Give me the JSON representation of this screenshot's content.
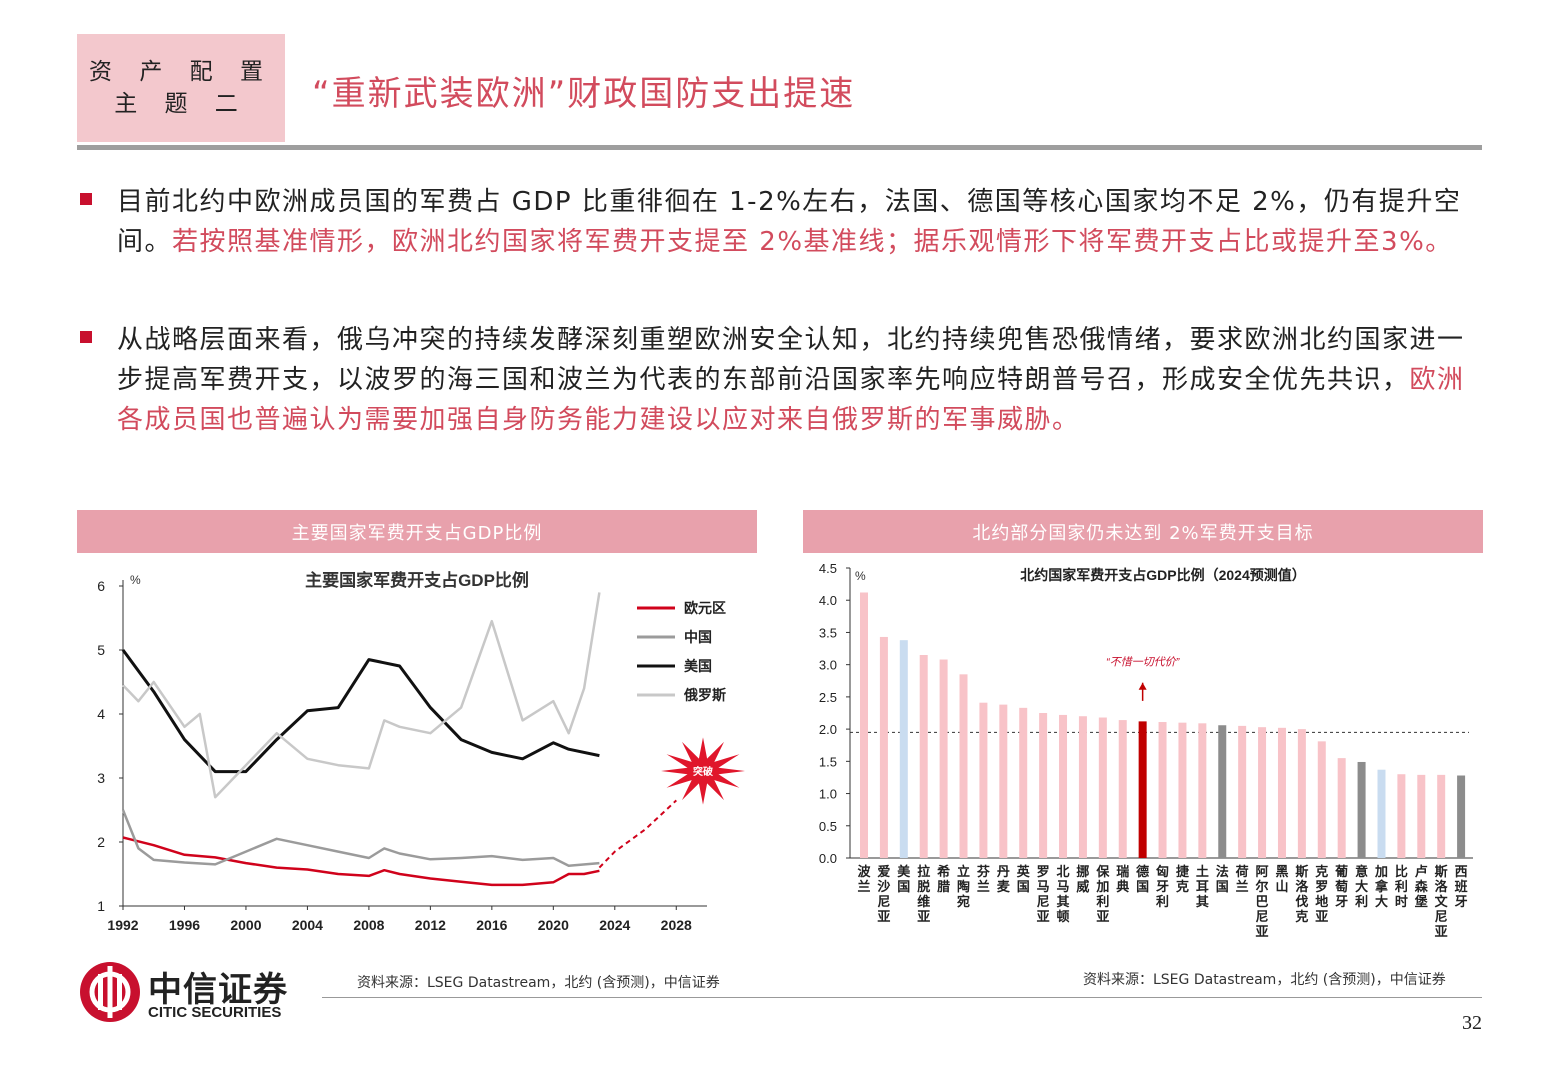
{
  "header": {
    "tag_line1": "资 产 配 置",
    "tag_line2": "主 题 二",
    "title": "“重新武装欧洲”财政国防支出提速"
  },
  "bullets": [
    {
      "black1": "目前北约中欧洲成员国的军费占 GDP 比重徘徊在 1-2%左右，法国、德国等核心国家均不足 2%，仍有提升空间。",
      "red1": "若按照基准情形，欧洲北约国家将军费开支提至 2%基准线；据乐观情形下将军费开支占比或提升至3%。"
    },
    {
      "black1": "从战略层面来看，俄乌冲突的持续发酵深刻重塑欧洲安全认知，北约持续兜售恐俄情绪，要求欧洲北约国家进一步提高军费开支，以波罗的海三国和波兰为代表的东部前沿国家率先响应特朗普号召，形成安全优先共识，",
      "red1": "欧洲各成员国也普遍认为需要加强自身防务能力建设以应对来自俄罗斯的军事威胁。"
    }
  ],
  "left_panel": {
    "header": "主要国家军费开支占GDP比例",
    "source": "资料来源：LSEG Datastream，北约 (含预测)，中信证券"
  },
  "right_panel": {
    "header": "北约部分国家仍未达到 2%军费开支目标",
    "source": "资料来源：LSEG Datastream，北约 (含预测)，中信证券"
  },
  "logo": {
    "cn": "中信证券",
    "en": "CITIC SECURITIES"
  },
  "page_number": "32",
  "colors": {
    "accent": "#d24b5d",
    "header_bg": "#f3c8cd",
    "panel_head": "#e8a1ac"
  },
  "chart_data": [
    {
      "type": "line",
      "title": "主要国家军费开支占GDP比例",
      "ylabel": "%",
      "ylim": [
        1,
        6
      ],
      "xlim": [
        1992,
        2030
      ],
      "xticks": [
        "1992",
        "1996",
        "2000",
        "2004",
        "2008",
        "2012",
        "2016",
        "2020",
        "2024",
        "2028"
      ],
      "yticks": [
        "1",
        "2",
        "3",
        "4",
        "5",
        "6"
      ],
      "annotation": "突破",
      "series": [
        {
          "name": "欧元区",
          "color": "#d0021b",
          "points": [
            [
              1992,
              2.07
            ],
            [
              1994,
              1.95
            ],
            [
              1996,
              1.8
            ],
            [
              1998,
              1.76
            ],
            [
              2000,
              1.67
            ],
            [
              2002,
              1.6
            ],
            [
              2004,
              1.57
            ],
            [
              2006,
              1.5
            ],
            [
              2008,
              1.47
            ],
            [
              2009,
              1.56
            ],
            [
              2010,
              1.5
            ],
            [
              2012,
              1.43
            ],
            [
              2014,
              1.38
            ],
            [
              2016,
              1.33
            ],
            [
              2018,
              1.33
            ],
            [
              2020,
              1.37
            ],
            [
              2021,
              1.5
            ],
            [
              2022,
              1.5
            ],
            [
              2023,
              1.55
            ]
          ],
          "forecast": [
            [
              2023,
              1.6
            ],
            [
              2024,
              1.85
            ],
            [
              2026,
              2.2
            ],
            [
              2028,
              2.65
            ]
          ]
        },
        {
          "name": "中国",
          "color": "#9b9b9b",
          "points": [
            [
              1992,
              2.5
            ],
            [
              1993,
              1.9
            ],
            [
              1994,
              1.72
            ],
            [
              1996,
              1.68
            ],
            [
              1998,
              1.65
            ],
            [
              2000,
              1.85
            ],
            [
              2002,
              2.05
            ],
            [
              2004,
              1.95
            ],
            [
              2006,
              1.85
            ],
            [
              2008,
              1.75
            ],
            [
              2009,
              1.9
            ],
            [
              2010,
              1.82
            ],
            [
              2012,
              1.73
            ],
            [
              2014,
              1.75
            ],
            [
              2016,
              1.78
            ],
            [
              2018,
              1.72
            ],
            [
              2020,
              1.75
            ],
            [
              2021,
              1.63
            ],
            [
              2023,
              1.67
            ]
          ]
        },
        {
          "name": "美国",
          "color": "#111111",
          "points": [
            [
              1992,
              5.0
            ],
            [
              1994,
              4.35
            ],
            [
              1996,
              3.6
            ],
            [
              1998,
              3.1
            ],
            [
              2000,
              3.1
            ],
            [
              2002,
              3.6
            ],
            [
              2004,
              4.05
            ],
            [
              2006,
              4.1
            ],
            [
              2008,
              4.85
            ],
            [
              2010,
              4.75
            ],
            [
              2012,
              4.1
            ],
            [
              2014,
              3.6
            ],
            [
              2016,
              3.4
            ],
            [
              2018,
              3.3
            ],
            [
              2020,
              3.55
            ],
            [
              2021,
              3.45
            ],
            [
              2023,
              3.35
            ]
          ]
        },
        {
          "name": "俄罗斯",
          "color": "#c8c8c8",
          "points": [
            [
              1992,
              4.45
            ],
            [
              1993,
              4.2
            ],
            [
              1994,
              4.5
            ],
            [
              1996,
              3.8
            ],
            [
              1997,
              4.0
            ],
            [
              1998,
              2.7
            ],
            [
              2000,
              3.2
            ],
            [
              2002,
              3.7
            ],
            [
              2004,
              3.3
            ],
            [
              2006,
              3.2
            ],
            [
              2008,
              3.15
            ],
            [
              2009,
              3.9
            ],
            [
              2010,
              3.8
            ],
            [
              2012,
              3.7
            ],
            [
              2014,
              4.1
            ],
            [
              2016,
              5.45
            ],
            [
              2018,
              3.9
            ],
            [
              2020,
              4.2
            ],
            [
              2021,
              3.7
            ],
            [
              2022,
              4.4
            ],
            [
              2023,
              5.9
            ]
          ]
        }
      ]
    },
    {
      "type": "bar",
      "title": "北约国家军费开支占GDP比例（2024预测值）",
      "ylabel": "%",
      "ylim": [
        0,
        4.5
      ],
      "yticks": [
        "0.0",
        "0.5",
        "1.0",
        "1.5",
        "2.0",
        "2.5",
        "3.0",
        "3.5",
        "4.0",
        "4.5"
      ],
      "reference_line": 1.95,
      "annotation": "“不惜一切代价”",
      "categories": [
        "波兰",
        "爱沙尼亚",
        "美国",
        "拉脱维亚",
        "希腊",
        "立陶宛",
        "芬兰",
        "丹麦",
        "英国",
        "罗马尼亚",
        "北马其顿",
        "挪威",
        "保加利亚",
        "瑞典",
        "德国",
        "匈牙利",
        "捷克",
        "土耳其",
        "法国",
        "荷兰",
        "阿尔巴尼亚",
        "黑山",
        "斯洛伐克",
        "克罗地亚",
        "葡萄牙",
        "意大利",
        "加拿大",
        "比利时",
        "卢森堡",
        "斯洛文尼亚",
        "西班牙"
      ],
      "values": [
        4.12,
        3.43,
        3.38,
        3.15,
        3.08,
        2.85,
        2.41,
        2.38,
        2.33,
        2.25,
        2.22,
        2.2,
        2.18,
        2.14,
        2.12,
        2.11,
        2.1,
        2.09,
        2.06,
        2.05,
        2.03,
        2.02,
        2.0,
        1.81,
        1.55,
        1.49,
        1.37,
        1.3,
        1.29,
        1.29,
        1.28
      ],
      "bar_kinds": [
        "pink",
        "pink",
        "blue",
        "pink",
        "pink",
        "pink",
        "pink",
        "pink",
        "pink",
        "pink",
        "pink",
        "pink",
        "pink",
        "pink",
        "red",
        "pink",
        "pink",
        "pink",
        "gray",
        "pink",
        "pink",
        "pink",
        "pink",
        "pink",
        "pink",
        "gray",
        "blue",
        "pink",
        "pink",
        "pink",
        "gray"
      ]
    }
  ]
}
